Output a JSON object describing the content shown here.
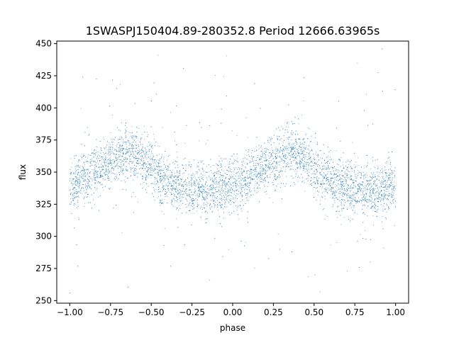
{
  "chart_data": {
    "type": "scatter",
    "title": "1SWASPJ150404.89-280352.8 Period 12666.63965s",
    "xlabel": "phase",
    "ylabel": "flux",
    "xlim": [
      -1.08,
      1.08
    ],
    "ylim": [
      248,
      452
    ],
    "xticks": [
      -1.0,
      -0.75,
      -0.5,
      -0.25,
      0.0,
      0.25,
      0.5,
      0.75,
      1.0
    ],
    "xtick_labels": [
      "−1.00",
      "−0.75",
      "−0.50",
      "−0.25",
      "0.00",
      "0.25",
      "0.50",
      "0.75",
      "1.00"
    ],
    "yticks": [
      250,
      275,
      300,
      325,
      350,
      375,
      400,
      425,
      450
    ],
    "ytick_labels": [
      "250",
      "275",
      "300",
      "325",
      "350",
      "375",
      "400",
      "425",
      "450"
    ],
    "grid": false,
    "legend": "none",
    "marker_color": "#1f77b4",
    "series": [
      {
        "points_x": [
          -1.0,
          -0.95,
          -0.9,
          -0.85,
          -0.8,
          -0.75,
          -0.7,
          -0.65,
          -0.6,
          -0.55,
          -0.5,
          -0.45,
          -0.4,
          -0.35,
          -0.3,
          -0.25,
          -0.2,
          -0.15,
          -0.1,
          -0.05,
          0.0,
          0.05,
          0.1,
          0.15,
          0.2,
          0.25,
          0.3,
          0.35,
          0.4,
          0.45,
          0.5,
          0.55,
          0.6,
          0.65,
          0.7,
          0.75,
          0.8,
          0.85,
          0.9,
          0.95,
          1.0
        ],
        "points_y": [
          340,
          343,
          346,
          350,
          354,
          358,
          363,
          366,
          364,
          359,
          352,
          347,
          342,
          340,
          338,
          337,
          336,
          336,
          337,
          339,
          340,
          343,
          346,
          350,
          354,
          358,
          363,
          366,
          364,
          359,
          352,
          347,
          342,
          340,
          338,
          337,
          336,
          336,
          337,
          339,
          340
        ]
      }
    ]
  }
}
